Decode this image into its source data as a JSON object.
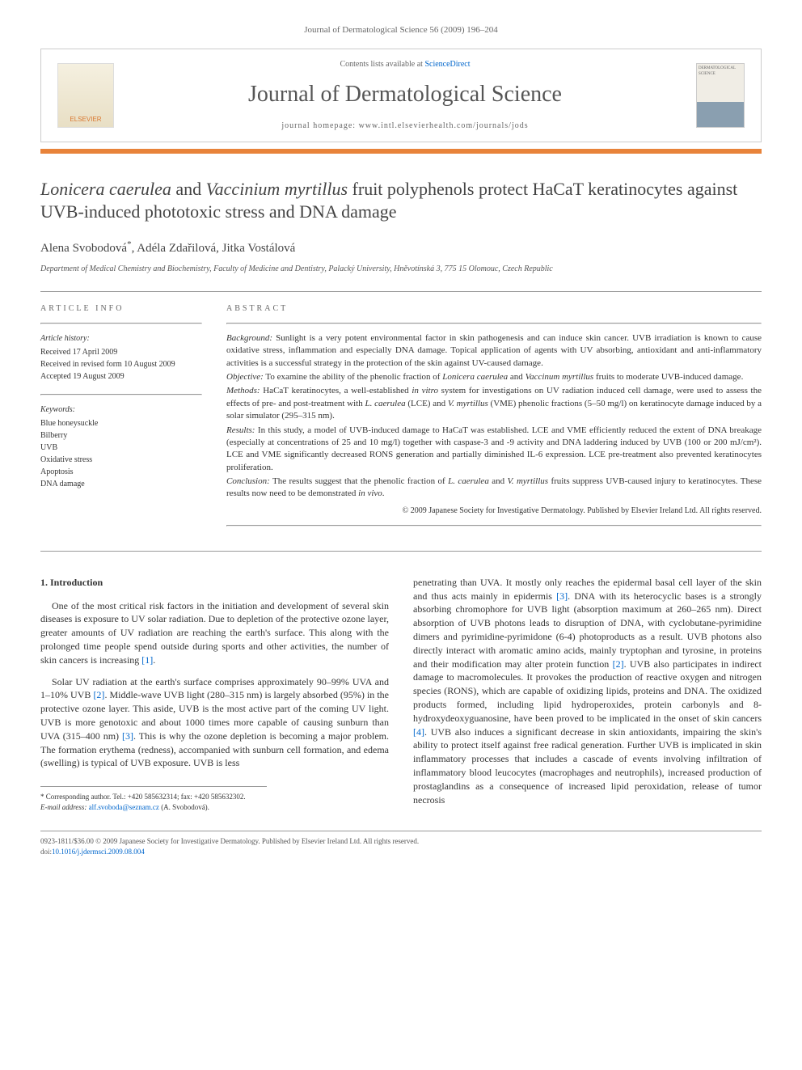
{
  "header": {
    "citation": "Journal of Dermatological Science 56 (2009) 196–204"
  },
  "banner": {
    "elsevier": "ELSEVIER",
    "contents_prefix": "Contents lists available at ",
    "contents_link": "ScienceDirect",
    "journal_name": "Journal of Dermatological Science",
    "homepage_prefix": "journal homepage: ",
    "homepage_url": "www.intl.elsevierhealth.com/journals/jods",
    "cover_label": "DERMATOLOGICAL SCIENCE"
  },
  "title": {
    "part1_italic": "Lonicera caerulea",
    "part2": " and ",
    "part3_italic": "Vaccinium myrtillus",
    "part4": " fruit polyphenols protect HaCaT keratinocytes against UVB-induced phototoxic stress and DNA damage"
  },
  "authors": {
    "a1": "Alena Svobodová",
    "corr": "*",
    "a2": ", Adéla Zdařilová, Jitka Vostálová"
  },
  "affiliation": "Department of Medical Chemistry and Biochemistry, Faculty of Medicine and Dentistry, Palacký University, Hněvotínská 3, 775 15 Olomouc, Czech Republic",
  "article_info": {
    "heading": "ARTICLE INFO",
    "history_label": "Article history:",
    "received": "Received 17 April 2009",
    "revised": "Received in revised form 10 August 2009",
    "accepted": "Accepted 19 August 2009",
    "keywords_label": "Keywords:",
    "kw1": "Blue honeysuckle",
    "kw2": "Bilberry",
    "kw3": "UVB",
    "kw4": "Oxidative stress",
    "kw5": "Apoptosis",
    "kw6": "DNA damage"
  },
  "abstract": {
    "heading": "ABSTRACT",
    "background_label": "Background:",
    "background": " Sunlight is a very potent environmental factor in skin pathogenesis and can induce skin cancer. UVB irradiation is known to cause oxidative stress, inflammation and especially DNA damage. Topical application of agents with UV absorbing, antioxidant and anti-inflammatory activities is a successful strategy in the protection of the skin against UV-caused damage.",
    "objective_label": "Objective:",
    "objective_p1": " To examine the ability of the phenolic fraction of ",
    "objective_i1": "Lonicera caerulea",
    "objective_p2": " and ",
    "objective_i2": "Vaccinum myrtillus",
    "objective_p3": " fruits to moderate UVB-induced damage.",
    "methods_label": "Methods:",
    "methods_p1": " HaCaT keratinocytes, a well-established ",
    "methods_i1": "in vitro",
    "methods_p2": " system for investigations on UV radiation induced cell damage, were used to assess the effects of pre- and post-treatment with ",
    "methods_i2": "L. caerulea",
    "methods_p3": " (LCE) and ",
    "methods_i3": "V. myrtillus",
    "methods_p4": " (VME) phenolic fractions (5–50 mg/l) on keratinocyte damage induced by a solar simulator (295–315 nm).",
    "results_label": "Results:",
    "results": " In this study, a model of UVB-induced damage to HaCaT was established. LCE and VME efficiently reduced the extent of DNA breakage (especially at concentrations of 25 and 10 mg/l) together with caspase-3 and -9 activity and DNA laddering induced by UVB (100 or 200 mJ/cm²). LCE and VME significantly decreased RONS generation and partially diminished IL-6 expression. LCE pre-treatment also prevented keratinocytes proliferation.",
    "conclusion_label": "Conclusion:",
    "conclusion_p1": " The results suggest that the phenolic fraction of ",
    "conclusion_i1": "L. caerulea",
    "conclusion_p2": " and ",
    "conclusion_i2": "V. myrtillus",
    "conclusion_p3": " fruits suppress UVB-caused injury to keratinocytes. These results now need to be demonstrated ",
    "conclusion_i3": "in vivo",
    "conclusion_p4": ".",
    "copyright": "© 2009 Japanese Society for Investigative Dermatology. Published by Elsevier Ireland Ltd. All rights reserved."
  },
  "body": {
    "section_heading": "1. Introduction",
    "p1_a": "One of the most critical risk factors in the initiation and development of several skin diseases is exposure to UV solar radiation. Due to depletion of the protective ozone layer, greater amounts of UV radiation are reaching the earth's surface. This along with the prolonged time people spend outside during sports and other activities, the number of skin cancers is increasing ",
    "p1_ref1": "[1]",
    "p1_b": ".",
    "p2_a": "Solar UV radiation at the earth's surface comprises approximately 90–99% UVA and 1–10% UVB ",
    "p2_ref2": "[2]",
    "p2_b": ". Middle-wave UVB light (280–315 nm) is largely absorbed (95%) in the protective ozone layer. This aside, UVB is the most active part of the coming UV light. UVB is more genotoxic and about 1000 times more capable of causing sunburn than UVA (315–400 nm) ",
    "p2_ref3": "[3]",
    "p2_c": ". This is why the ozone depletion is becoming a major problem. The formation erythema (redness), accompanied with sunburn cell formation, and edema (swelling) is typical of UVB exposure. UVB is less",
    "p3_a": "penetrating than UVA. It mostly only reaches the epidermal basal cell layer of the skin and thus acts mainly in epidermis ",
    "p3_ref3": "[3]",
    "p3_b": ". DNA with its heterocyclic bases is a strongly absorbing chromophore for UVB light (absorption maximum at 260–265 nm). Direct absorption of UVB photons leads to disruption of DNA, with cyclobutane-pyrimidine dimers and pyrimidine-pyrimidone (6-4) photoproducts as a result. UVB photons also directly interact with aromatic amino acids, mainly tryptophan and tyrosine, in proteins and their modification may alter protein function ",
    "p3_ref2": "[2]",
    "p3_c": ". UVB also participates in indirect damage to macromolecules. It provokes the production of reactive oxygen and nitrogen species (RONS), which are capable of oxidizing lipids, proteins and DNA. The oxidized products formed, including lipid hydroperoxides, protein carbonyls and 8-hydroxydeoxyguanosine, have been proved to be implicated in the onset of skin cancers ",
    "p3_ref4": "[4]",
    "p3_d": ". UVB also induces a significant decrease in skin antioxidants, impairing the skin's ability to protect itself against free radical generation. Further UVB is implicated in skin inflammatory processes that includes a cascade of events involving infiltration of inflammatory blood leucocytes (macrophages and neutrophils), increased production of prostaglandins as a consequence of increased lipid peroxidation, release of tumor necrosis"
  },
  "footnotes": {
    "corr": "* Corresponding author. Tel.: +420 585632314; fax: +420 585632302.",
    "email_label": "E-mail address: ",
    "email": "alf.svoboda@seznam.cz",
    "email_suffix": " (A. Svobodová)."
  },
  "footer": {
    "line1": "0923-1811/$36.00 © 2009 Japanese Society for Investigative Dermatology. Published by Elsevier Ireland Ltd. All rights reserved.",
    "doi_label": "doi:",
    "doi": "10.1016/j.jdermsci.2009.08.004"
  },
  "colors": {
    "orange": "#e8833a",
    "link": "#0066cc",
    "text": "#333333",
    "muted": "#666666"
  }
}
